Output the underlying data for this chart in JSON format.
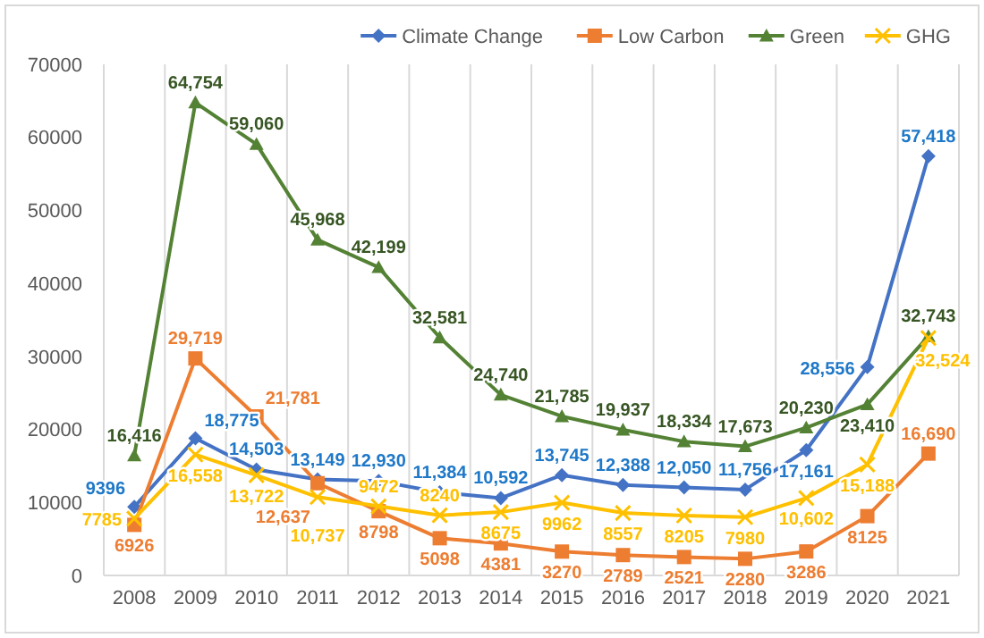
{
  "chart_data": {
    "type": "line",
    "categories": [
      "2008",
      "2009",
      "2010",
      "2011",
      "2012",
      "2013",
      "2014",
      "2015",
      "2016",
      "2017",
      "2018",
      "2019",
      "2020",
      "2021"
    ],
    "ylim": [
      0,
      70000
    ],
    "yticks": [
      0,
      10000,
      20000,
      30000,
      40000,
      50000,
      60000,
      70000
    ],
    "grid": "x",
    "legend": "top right",
    "series": [
      {
        "name": "Climate Change",
        "color": "#4472c4",
        "marker": "diamond",
        "values": [
          9396,
          18775,
          14503,
          13149,
          12930,
          11384,
          10592,
          13745,
          12388,
          12050,
          11756,
          17161,
          28556,
          57418
        ],
        "value_labels": [
          "9396",
          "18,775",
          "14,503",
          "13,149",
          "12,930",
          "11,384",
          "10,592",
          "13,745",
          "12,388",
          "12,050",
          "11,756",
          "17,161",
          "28,556",
          "57,418"
        ]
      },
      {
        "name": "Low Carbon",
        "color": "#ed7d31",
        "marker": "square",
        "values": [
          6926,
          29719,
          21781,
          12637,
          8798,
          5098,
          4381,
          3270,
          2789,
          2521,
          2280,
          3286,
          8125,
          16690
        ],
        "value_labels": [
          "6926",
          "29,719",
          "21,781",
          "12,637",
          "8798",
          "5098",
          "4381",
          "3270",
          "2789",
          "2521",
          "2280",
          "3286",
          "8125",
          "16,690"
        ]
      },
      {
        "name": "Green",
        "color": "#548235",
        "marker": "triangle",
        "values": [
          16416,
          64754,
          59060,
          45968,
          42199,
          32581,
          24740,
          21785,
          19937,
          18334,
          17673,
          20230,
          23410,
          32743
        ],
        "value_labels": [
          "16,416",
          "64,754",
          "59,060",
          "45,968",
          "42,199",
          "32,581",
          "24,740",
          "21,785",
          "19,937",
          "18,334",
          "17,673",
          "20,230",
          "23,410",
          "32,743"
        ]
      },
      {
        "name": "GHG",
        "color": "#ffc000",
        "marker": "cross",
        "values": [
          7785,
          16558,
          13722,
          10737,
          9472,
          8240,
          8675,
          9962,
          8557,
          8205,
          7980,
          10602,
          15188,
          32524
        ],
        "value_labels": [
          "7785",
          "16,558",
          "13,722",
          "10,737",
          "9472",
          "8240",
          "8675",
          "9962",
          "8557",
          "8205",
          "7980",
          "10,602",
          "15,188",
          "32,524"
        ]
      }
    ]
  }
}
